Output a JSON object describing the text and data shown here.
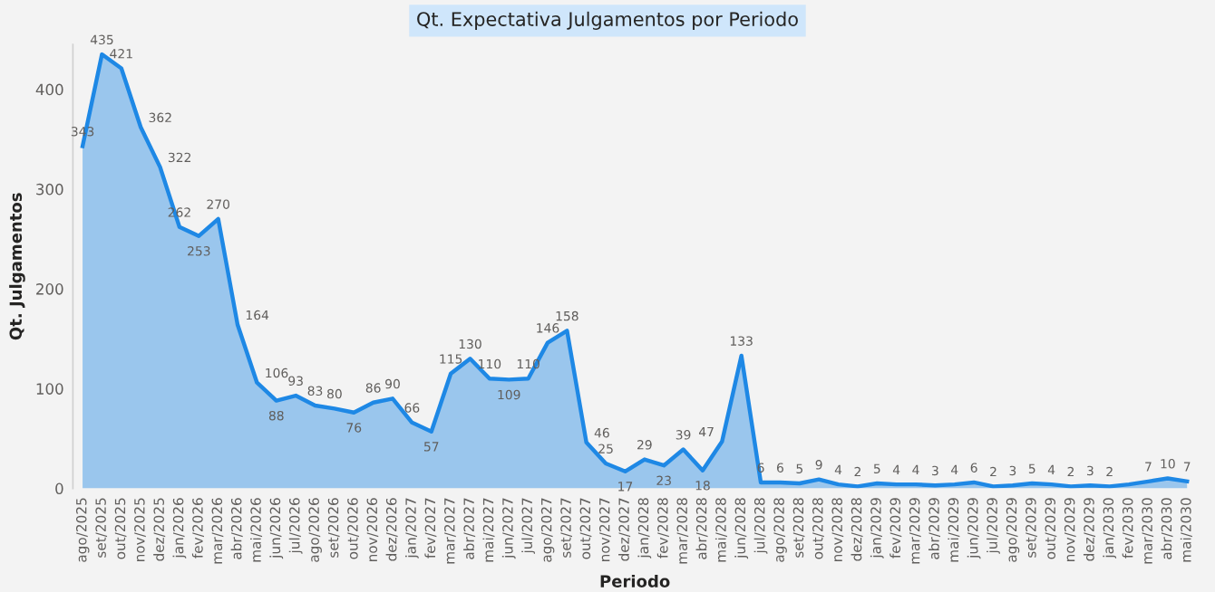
{
  "chart_data": {
    "type": "area",
    "title": "Qt. Expectativa Julgamentos por Periodo",
    "xlabel": "Periodo",
    "ylabel": "Qt. Julgamentos",
    "categories": [
      "ago/2025",
      "set/2025",
      "out/2025",
      "nov/2025",
      "dez/2025",
      "jan/2026",
      "fev/2026",
      "mar/2026",
      "abr/2026",
      "mai/2026",
      "jun/2026",
      "jul/2026",
      "ago/2026",
      "set/2026",
      "out/2026",
      "nov/2026",
      "dez/2026",
      "jan/2027",
      "fev/2027",
      "mar/2027",
      "abr/2027",
      "mai/2027",
      "jun/2027",
      "jul/2027",
      "ago/2027",
      "set/2027",
      "out/2027",
      "nov/2027",
      "dez/2027",
      "jan/2028",
      "fev/2028",
      "mar/2028",
      "abr/2028",
      "mai/2028",
      "jun/2028",
      "jul/2028",
      "ago/2028",
      "set/2028",
      "out/2028",
      "nov/2028",
      "dez/2028",
      "jan/2029",
      "fev/2029",
      "mar/2029",
      "abr/2029",
      "mai/2029",
      "jun/2029",
      "jul/2029",
      "ago/2029",
      "set/2029",
      "out/2029",
      "nov/2029",
      "dez/2029",
      "jan/2030",
      "fev/2030",
      "mar/2030",
      "abr/2030",
      "mai/2030"
    ],
    "series": [
      {
        "color": "#1e88e5",
        "values": [
          343,
          435,
          421,
          362,
          322,
          262,
          253,
          270,
          164,
          106,
          88,
          93,
          83,
          80,
          76,
          86,
          90,
          66,
          57,
          115,
          130,
          110,
          109,
          110,
          146,
          158,
          46,
          25,
          17,
          29,
          23,
          39,
          18,
          47,
          133,
          6,
          6,
          5,
          9,
          4,
          2,
          5,
          4,
          4,
          3,
          4,
          6,
          2,
          3,
          5,
          4,
          2,
          3,
          2,
          4,
          7,
          10,
          7
        ],
        "value_labels": [
          "343",
          "435",
          "421",
          "362",
          "322",
          "262",
          "253",
          "270",
          "164",
          "106",
          "88",
          "93",
          "83",
          "80",
          "76",
          "86",
          "90",
          "66",
          "57",
          "115",
          "130",
          "110",
          "109",
          "110",
          "146",
          "158",
          "46",
          "25",
          "17",
          "29",
          "23",
          "39",
          "18",
          "47",
          "133",
          "6",
          "6",
          "5",
          "9",
          "4",
          "2",
          "5",
          "4",
          "4",
          "3",
          "4",
          "6",
          "2",
          "3",
          "5",
          "4",
          "2",
          "3",
          "2",
          null,
          "7",
          "10",
          "7"
        ]
      }
    ],
    "ylim": [
      0,
      445
    ],
    "yticks": [
      0,
      100,
      200,
      300,
      400
    ],
    "grid": false,
    "legend": false
  }
}
